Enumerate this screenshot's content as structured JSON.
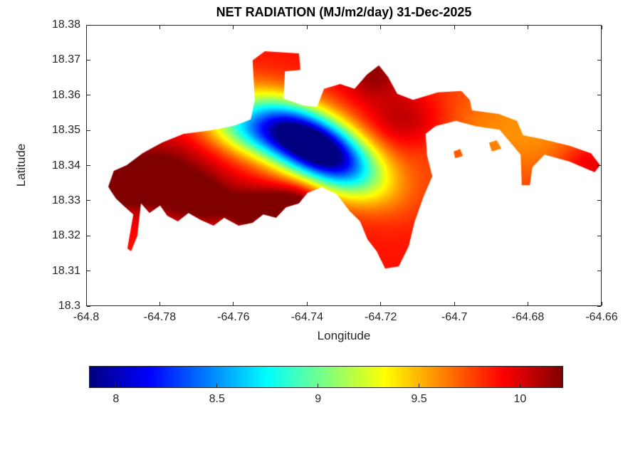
{
  "chart_data": {
    "type": "heatmap",
    "title": "NET RADIATION (MJ/m2/day) 31-Dec-2025",
    "variable": "Net radiation",
    "units": "MJ/m2/day",
    "date": "31-Dec-2025",
    "xlabel": "Longitude",
    "ylabel": "Latitude",
    "xlim": [
      -64.8,
      -64.66
    ],
    "ylim": [
      18.3,
      18.38
    ],
    "x_tick_values": [
      -64.8,
      -64.78,
      -64.76,
      -64.74,
      -64.72,
      -64.7,
      -64.68,
      -64.66
    ],
    "x_tick_labels": [
      "-64.8",
      "-64.78",
      "-64.76",
      "-64.74",
      "-64.72",
      "-64.7",
      "-64.68",
      "-64.66"
    ],
    "y_tick_values": [
      18.3,
      18.31,
      18.32,
      18.33,
      18.34,
      18.35,
      18.36,
      18.37,
      18.38
    ],
    "y_tick_labels": [
      "18.3",
      "18.31",
      "18.32",
      "18.33",
      "18.34",
      "18.35",
      "18.36",
      "18.37",
      "18.38"
    ],
    "grid": false,
    "colormap": "jet",
    "clim": [
      7.87,
      10.21
    ],
    "text_color": "#262626",
    "colorbar": {
      "orientation": "horizontal",
      "tick_values": [
        8,
        8.5,
        9,
        9.5,
        10
      ],
      "tick_labels": [
        "8",
        "8.5",
        "9",
        "9.5",
        "10"
      ]
    },
    "field": {
      "base": 9.88,
      "features": [
        {
          "name": "central-minimum",
          "lon": -64.7383,
          "lat": 18.3456,
          "amp": -2.4,
          "sx": 0.0128,
          "sy": 0.006,
          "rot": -32
        },
        {
          "name": "nw-green-dip",
          "lon": -64.757,
          "lat": 18.35,
          "amp": -0.7,
          "sx": 0.009,
          "sy": 0.005,
          "rot": -20
        },
        {
          "name": "west-maximum",
          "lon": -64.781,
          "lat": 18.337,
          "amp": 0.45,
          "sx": 0.01,
          "sy": 0.007,
          "rot": 0
        },
        {
          "name": "west-tip-maximum",
          "lon": -64.79,
          "lat": 18.3335,
          "amp": 0.3,
          "sx": 0.005,
          "sy": 0.004,
          "rot": 0
        },
        {
          "name": "south-maximum-1",
          "lon": -64.752,
          "lat": 18.327,
          "amp": 0.5,
          "sx": 0.006,
          "sy": 0.0045,
          "rot": 0
        },
        {
          "name": "south-maximum-2",
          "lon": -64.742,
          "lat": 18.33,
          "amp": 0.35,
          "sx": 0.005,
          "sy": 0.004,
          "rot": 0
        },
        {
          "name": "sw-maximum",
          "lon": -64.768,
          "lat": 18.33,
          "amp": 0.35,
          "sx": 0.007,
          "sy": 0.005,
          "rot": 0
        },
        {
          "name": "ne-maximum",
          "lon": -64.713,
          "lat": 18.353,
          "amp": 0.3,
          "sx": 0.008,
          "sy": 0.006,
          "rot": 0
        },
        {
          "name": "north-maximum",
          "lon": -64.722,
          "lat": 18.366,
          "amp": 0.3,
          "sx": 0.006,
          "sy": 0.005,
          "rot": 0
        },
        {
          "name": "east-tip-maximum",
          "lon": -64.663,
          "lat": 18.341,
          "amp": 0.25,
          "sx": 0.006,
          "sy": 0.005,
          "rot": 0
        },
        {
          "name": "east-soft-dip",
          "lon": -64.68,
          "lat": 18.35,
          "amp": -0.3,
          "sx": 0.025,
          "sy": 0.012,
          "rot": 0
        }
      ]
    },
    "region_polygons": [
      [
        [
          -64.794,
          18.334
        ],
        [
          -64.7925,
          18.3385
        ],
        [
          -64.789,
          18.3401
        ],
        [
          -64.7847,
          18.3435
        ],
        [
          -64.7793,
          18.3466
        ],
        [
          -64.7735,
          18.349
        ],
        [
          -64.7664,
          18.35
        ],
        [
          -64.7596,
          18.3514
        ],
        [
          -64.7553,
          18.3531
        ],
        [
          -64.7542,
          18.3587
        ],
        [
          -64.7548,
          18.3699
        ],
        [
          -64.7515,
          18.3725
        ],
        [
          -64.7422,
          18.3719
        ],
        [
          -64.7418,
          18.3672
        ],
        [
          -64.746,
          18.3668
        ],
        [
          -64.7464,
          18.3591
        ],
        [
          -64.7412,
          18.3571
        ],
        [
          -64.7373,
          18.3567
        ],
        [
          -64.7354,
          18.3618
        ],
        [
          -64.731,
          18.3632
        ],
        [
          -64.7271,
          18.3618
        ],
        [
          -64.7238,
          18.3658
        ],
        [
          -64.7205,
          18.3685
        ],
        [
          -64.718,
          18.3652
        ],
        [
          -64.7155,
          18.3604
        ],
        [
          -64.7112,
          18.3587
        ],
        [
          -64.7045,
          18.3608
        ],
        [
          -64.6981,
          18.3612
        ],
        [
          -64.6958,
          18.3587
        ],
        [
          -64.6952,
          18.3557
        ],
        [
          -64.688,
          18.3547
        ],
        [
          -64.683,
          18.3527
        ],
        [
          -64.6813,
          18.3486
        ],
        [
          -64.6764,
          18.3476
        ],
        [
          -64.6687,
          18.3456
        ],
        [
          -64.6629,
          18.3435
        ],
        [
          -64.6604,
          18.3401
        ],
        [
          -64.6619,
          18.3381
        ],
        [
          -64.6687,
          18.3411
        ],
        [
          -64.6755,
          18.3431
        ],
        [
          -64.6788,
          18.3395
        ],
        [
          -64.6795,
          18.3344
        ],
        [
          -64.6817,
          18.3344
        ],
        [
          -64.682,
          18.3431
        ],
        [
          -64.6877,
          18.3502
        ],
        [
          -64.6942,
          18.3512
        ],
        [
          -64.6996,
          18.3527
        ],
        [
          -64.7051,
          18.3512
        ],
        [
          -64.7078,
          18.349
        ],
        [
          -64.7074,
          18.3429
        ],
        [
          -64.706,
          18.3369
        ],
        [
          -64.7085,
          18.3308
        ],
        [
          -64.7108,
          18.3239
        ],
        [
          -64.7124,
          18.317
        ],
        [
          -64.7151,
          18.3113
        ],
        [
          -64.7188,
          18.3107
        ],
        [
          -64.7211,
          18.3156
        ],
        [
          -64.7236,
          18.319
        ],
        [
          -64.7256,
          18.3241
        ],
        [
          -64.7285,
          18.3271
        ],
        [
          -64.7319,
          18.3318
        ],
        [
          -64.736,
          18.3338
        ],
        [
          -64.7399,
          18.3322
        ],
        [
          -64.7422,
          18.3292
        ],
        [
          -64.7457,
          18.3281
        ],
        [
          -64.7484,
          18.3251
        ],
        [
          -64.7519,
          18.3261
        ],
        [
          -64.7548,
          18.3237
        ],
        [
          -64.7586,
          18.3229
        ],
        [
          -64.7625,
          18.3251
        ],
        [
          -64.7654,
          18.3229
        ],
        [
          -64.7689,
          18.3245
        ],
        [
          -64.7722,
          18.3265
        ],
        [
          -64.7751,
          18.3241
        ],
        [
          -64.778,
          18.3257
        ],
        [
          -64.7799,
          18.3286
        ],
        [
          -64.7828,
          18.3265
        ],
        [
          -64.7851,
          18.3292
        ],
        [
          -64.7861,
          18.32
        ],
        [
          -64.7878,
          18.3156
        ],
        [
          -64.7888,
          18.3164
        ],
        [
          -64.7872,
          18.3261
        ],
        [
          -64.7899,
          18.3286
        ],
        [
          -64.7919,
          18.3306
        ],
        [
          -64.7932,
          18.3326
        ]
      ],
      [
        [
          -64.6906,
          18.3465
        ],
        [
          -64.6885,
          18.3472
        ],
        [
          -64.6872,
          18.3448
        ],
        [
          -64.6898,
          18.344
        ]
      ],
      [
        [
          -64.7002,
          18.344
        ],
        [
          -64.6984,
          18.3447
        ],
        [
          -64.6977,
          18.3427
        ],
        [
          -64.6998,
          18.3421
        ]
      ]
    ]
  }
}
